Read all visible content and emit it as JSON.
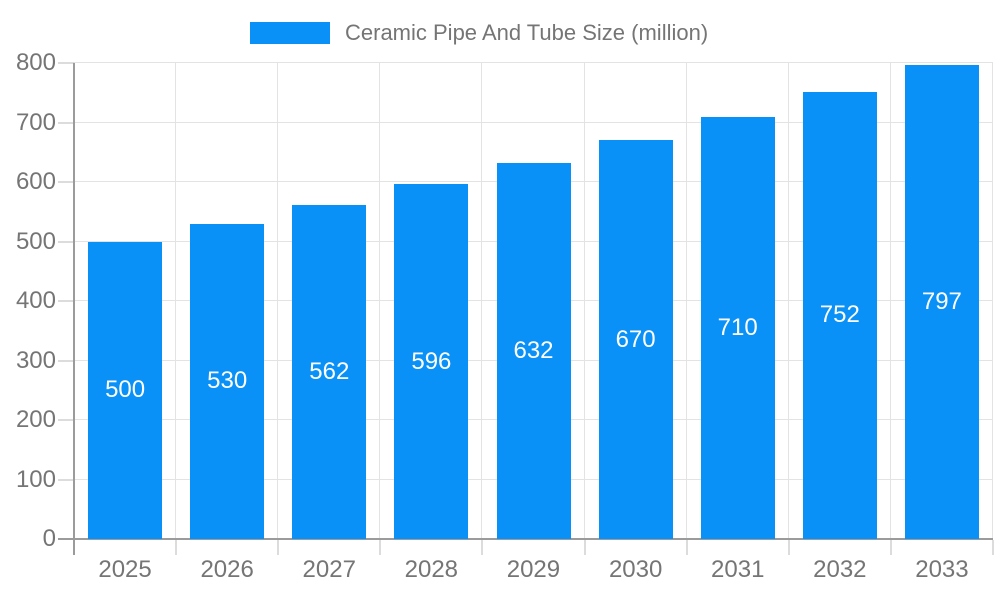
{
  "chart_data": {
    "type": "bar",
    "title": "Ceramic Pipe And Tube Size (million)",
    "legend": [
      "Ceramic Pipe And Tube Size (million)"
    ],
    "legend_position": "top-center",
    "categories": [
      "2025",
      "2026",
      "2027",
      "2028",
      "2029",
      "2030",
      "2031",
      "2032",
      "2033"
    ],
    "values": [
      500,
      530,
      562,
      596,
      632,
      670,
      710,
      752,
      797
    ],
    "xlabel": "",
    "ylabel": "",
    "ylim": [
      0,
      800
    ],
    "ytick_step": 100,
    "yticks": [
      "0",
      "100",
      "200",
      "300",
      "400",
      "500",
      "600",
      "700",
      "800"
    ],
    "grid": true,
    "data_labels": "centered-white-inside-bars"
  },
  "colors": {
    "bar": "#0a91f7",
    "bar_label": "#ffffff",
    "axis_text": "#757575",
    "legend_text": "#757575",
    "axis_line": "#9b9b9b",
    "grid": "#e3e3e3",
    "tick": "#dcdcdc",
    "background": "#ffffff"
  }
}
